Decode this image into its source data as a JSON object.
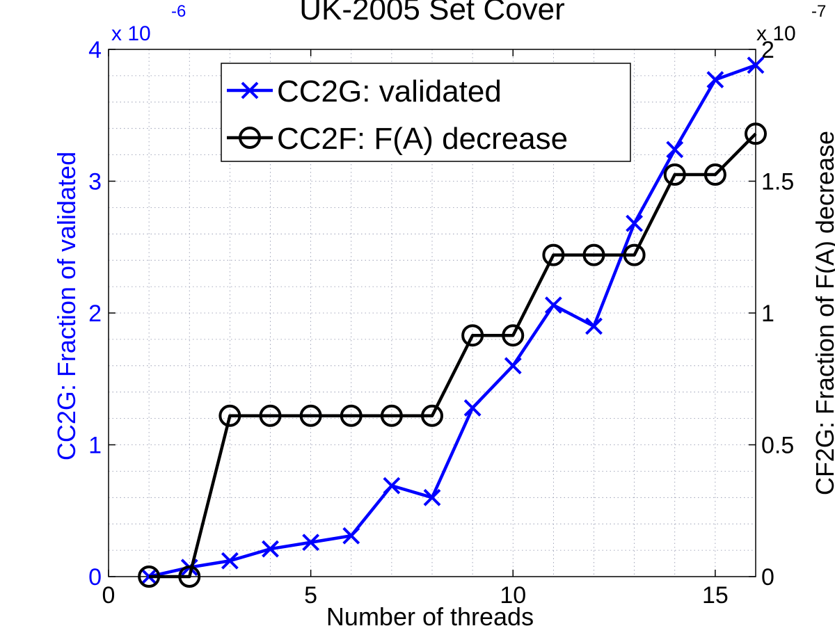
{
  "chart_data": {
    "type": "line",
    "title": "UK-2005 Set Cover",
    "xlabel": "Number of threads",
    "xlim": [
      0,
      16
    ],
    "xticks": [
      0,
      5,
      10,
      15
    ],
    "xtick_labels": [
      "0",
      "5",
      "10",
      "15"
    ],
    "left_axis": {
      "label": "CC2G: Fraction of validated",
      "ylim": [
        0,
        4
      ],
      "ticks": [
        0,
        1,
        2,
        3,
        4
      ],
      "tick_labels": [
        "0",
        "1",
        "2",
        "3",
        "4"
      ],
      "multiplier_base": "x 10",
      "multiplier_exp": "-6",
      "color": "#0000ff"
    },
    "right_axis": {
      "label": "CF2G: Fraction of F(A) decrease",
      "ylim": [
        0,
        2
      ],
      "ticks": [
        0,
        0.5,
        1,
        1.5,
        2
      ],
      "tick_labels": [
        "0",
        "0.5",
        "1",
        "1.5",
        "2"
      ],
      "multiplier_base": "x 10",
      "multiplier_exp": "-7",
      "color": "#000000"
    },
    "grid": true,
    "legend_position": "top",
    "series": [
      {
        "name": "CC2G: validated",
        "axis": "left",
        "marker": "x",
        "color": "#0000ff",
        "x": [
          1,
          2,
          3,
          4,
          5,
          6,
          7,
          8,
          9,
          10,
          11,
          12,
          13,
          14,
          15,
          16
        ],
        "y": [
          0,
          0.07,
          0.12,
          0.21,
          0.26,
          0.31,
          0.69,
          0.6,
          1.28,
          1.6,
          2.06,
          1.9,
          2.68,
          3.24,
          3.77,
          3.88
        ]
      },
      {
        "name": "CC2F: F(A) decrease",
        "axis": "right",
        "marker": "o",
        "color": "#000000",
        "x": [
          1,
          2,
          3,
          4,
          5,
          6,
          7,
          8,
          9,
          10,
          11,
          12,
          13,
          14,
          15,
          16
        ],
        "y": [
          0,
          0,
          0.61,
          0.61,
          0.61,
          0.61,
          0.61,
          0.61,
          0.915,
          0.915,
          1.22,
          1.22,
          1.22,
          1.525,
          1.525,
          1.68
        ]
      }
    ]
  }
}
